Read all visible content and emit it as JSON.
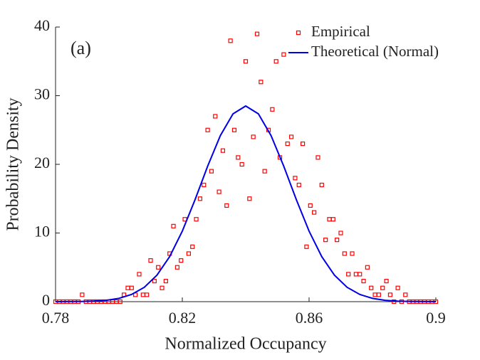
{
  "chart_data": {
    "type": "scatter",
    "xlabel": "Normalized Occupancy",
    "ylabel": "Probability Density",
    "annotation": "(a)",
    "xlim": [
      0.78,
      0.9
    ],
    "ylim": [
      0,
      40
    ],
    "xticks": [
      0.78,
      0.82,
      0.86,
      0.9
    ],
    "yticks": [
      0,
      10,
      20,
      30,
      40
    ],
    "grid": false,
    "legend": "upper right",
    "series": [
      {
        "name": "Empirical",
        "type": "scatter",
        "color": "#ff0000",
        "x": [
          0.78,
          0.7812,
          0.7824,
          0.7836,
          0.7848,
          0.786,
          0.7872,
          0.7884,
          0.7896,
          0.7908,
          0.792,
          0.7932,
          0.7944,
          0.7956,
          0.7968,
          0.798,
          0.7992,
          0.8004,
          0.8016,
          0.8028,
          0.804,
          0.8052,
          0.8064,
          0.8076,
          0.8088,
          0.81,
          0.8112,
          0.8124,
          0.8136,
          0.8148,
          0.816,
          0.8172,
          0.8184,
          0.8196,
          0.8208,
          0.822,
          0.8232,
          0.8244,
          0.8256,
          0.8268,
          0.828,
          0.8292,
          0.8304,
          0.8316,
          0.8328,
          0.834,
          0.8352,
          0.8364,
          0.8376,
          0.8388,
          0.84,
          0.8412,
          0.8424,
          0.8436,
          0.8448,
          0.846,
          0.8472,
          0.8484,
          0.8496,
          0.8508,
          0.852,
          0.8532,
          0.8544,
          0.8556,
          0.8568,
          0.858,
          0.8592,
          0.8604,
          0.8616,
          0.8628,
          0.864,
          0.8652,
          0.8664,
          0.8676,
          0.8688,
          0.87,
          0.8712,
          0.8724,
          0.8736,
          0.8748,
          0.876,
          0.8772,
          0.8784,
          0.8796,
          0.8808,
          0.882,
          0.8832,
          0.8844,
          0.8856,
          0.8868,
          0.888,
          0.8892,
          0.8904,
          0.8916,
          0.8928,
          0.894,
          0.8952,
          0.8964,
          0.8976,
          0.8988,
          0.9
        ],
        "values": [
          0,
          0,
          0,
          0,
          0,
          0,
          0,
          1,
          0,
          0,
          0,
          0,
          0,
          0,
          0,
          0,
          0,
          0,
          1,
          2,
          2,
          1,
          4,
          1,
          1,
          6,
          3,
          5,
          2,
          3,
          7,
          11,
          5,
          6,
          12,
          7,
          8,
          12,
          15,
          17,
          25,
          19,
          27,
          16,
          22,
          14,
          38,
          25,
          21,
          20,
          35,
          15,
          24,
          39,
          32,
          19,
          25,
          28,
          35,
          21,
          36,
          23,
          24,
          18,
          17,
          23,
          8,
          14,
          13,
          21,
          17,
          9,
          12,
          12,
          9,
          10,
          7,
          4,
          7,
          4,
          4,
          3,
          5,
          2,
          1,
          1,
          2,
          3,
          1,
          0,
          2,
          0,
          1,
          0,
          0,
          0,
          0,
          0,
          0,
          0,
          0
        ]
      },
      {
        "name": "Theoretical (Normal)",
        "type": "line",
        "color": "#0000e6",
        "x": [
          0.78,
          0.784,
          0.788,
          0.792,
          0.796,
          0.8,
          0.804,
          0.808,
          0.812,
          0.816,
          0.82,
          0.824,
          0.828,
          0.832,
          0.836,
          0.84,
          0.844,
          0.848,
          0.852,
          0.856,
          0.86,
          0.864,
          0.868,
          0.872,
          0.876,
          0.88,
          0.884,
          0.888,
          0.892,
          0.896,
          0.9
        ],
        "values": [
          0,
          0.01,
          0.03,
          0.08,
          0.2,
          0.48,
          1.05,
          2.09,
          3.86,
          6.56,
          10.27,
          14.83,
          19.74,
          24.19,
          27.36,
          28.5,
          27.36,
          24.19,
          19.74,
          14.83,
          10.27,
          6.56,
          3.86,
          2.09,
          1.05,
          0.48,
          0.2,
          0.08,
          0.03,
          0.01,
          0
        ]
      }
    ]
  }
}
